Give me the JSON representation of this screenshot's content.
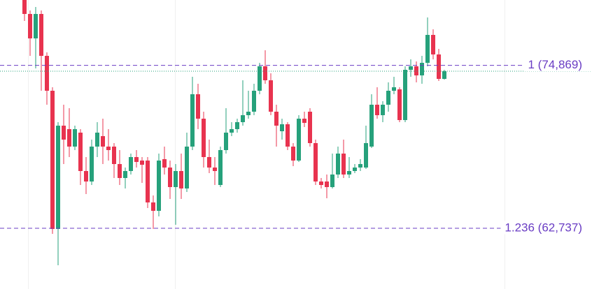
{
  "chart_data": {
    "type": "candlestick",
    "up_color": "#26a17b",
    "down_color": "#e8334f",
    "level_color": "#6a3dc4",
    "ylim": [
      58212,
      79740
    ],
    "levels": [
      {
        "value": 74869,
        "label": "1 (74,869)"
      },
      {
        "value": 62737,
        "label": "1.236 (62,737)"
      }
    ],
    "open": [
      79740,
      78700,
      76880,
      78700,
      75580,
      72980,
      62684,
      70380,
      70120,
      68820,
      69860,
      67000,
      66220,
      68820,
      69600,
      68820,
      68820,
      67520,
      66480,
      67000,
      68040,
      67780,
      67780,
      64660,
      64036,
      67884,
      67260,
      65804,
      67000,
      65700,
      68820,
      72720,
      70900,
      68040,
      67260,
      65960,
      68560,
      69860,
      70120,
      70640,
      71160,
      71420,
      72980,
      74800,
      73760,
      71420,
      69964,
      70484,
      68820,
      67780,
      70900,
      71420,
      69080,
      66220,
      66220,
      65804,
      66740,
      68300,
      66740,
      67000,
      67260,
      67260,
      68820,
      71940,
      71160,
      71940,
      72980,
      73084,
      70796,
      74540,
      74800,
      74124,
      75060,
      77140,
      75684,
      73864
    ],
    "high": [
      79740,
      78960,
      79220,
      78960,
      75840,
      73240,
      70640,
      71940,
      71680,
      70380,
      70120,
      68040,
      69340,
      70640,
      70900,
      70120,
      69080,
      68560,
      67260,
      68300,
      68560,
      68040,
      68040,
      65180,
      68300,
      68820,
      67780,
      67520,
      68300,
      69860,
      74020,
      73500,
      71420,
      69340,
      68040,
      68820,
      71680,
      70640,
      70900,
      73760,
      72980,
      73500,
      75060,
      75996,
      74280,
      71940,
      70900,
      70640,
      69080,
      71160,
      71420,
      71680,
      69340,
      66480,
      66740,
      68300,
      68820,
      69340,
      68040,
      67520,
      67884,
      70380,
      72720,
      73240,
      72200,
      73604,
      74020,
      73240,
      74800,
      75320,
      75164,
      75580,
      78440,
      77556,
      76100,
      74540
    ],
    "low": [
      78180,
      75580,
      74644,
      72980,
      71940,
      62320,
      59980,
      67520,
      68040,
      68560,
      65960,
      65284,
      65960,
      68040,
      67520,
      67780,
      66480,
      65960,
      65700,
      66740,
      67260,
      66116,
      64244,
      62684,
      63620,
      66740,
      64920,
      62996,
      64920,
      65440,
      68560,
      70120,
      67260,
      66844,
      65960,
      65804,
      68300,
      69600,
      69860,
      70380,
      70900,
      71160,
      72720,
      73500,
      71160,
      68820,
      69340,
      68560,
      67364,
      67676,
      70276,
      68820,
      65960,
      65700,
      64972,
      65700,
      66480,
      66480,
      66480,
      66844,
      67000,
      67156,
      68716,
      70900,
      70640,
      71420,
      72720,
      70640,
      70640,
      74020,
      73604,
      73500,
      74800,
      75320,
      73708,
      73812
    ],
    "close": [
      78700,
      76880,
      78700,
      75580,
      72980,
      62684,
      70380,
      69340,
      68820,
      70120,
      67000,
      66220,
      68820,
      69860,
      68820,
      68560,
      67520,
      66480,
      67000,
      68040,
      67676,
      67468,
      64660,
      64036,
      67780,
      67260,
      65804,
      67000,
      65700,
      68820,
      72720,
      70900,
      68040,
      67260,
      67000,
      68560,
      69860,
      70120,
      70640,
      71160,
      71420,
      72980,
      74800,
      73760,
      71420,
      70380,
      70484,
      68820,
      67780,
      70900,
      70588,
      69080,
      66220,
      65960,
      65804,
      66740,
      68300,
      66740,
      67000,
      67260,
      67520,
      69080,
      71940,
      71160,
      71940,
      72980,
      73240,
      70796,
      74540,
      74800,
      74124,
      75060,
      77140,
      75684,
      73864,
      74436
    ]
  }
}
